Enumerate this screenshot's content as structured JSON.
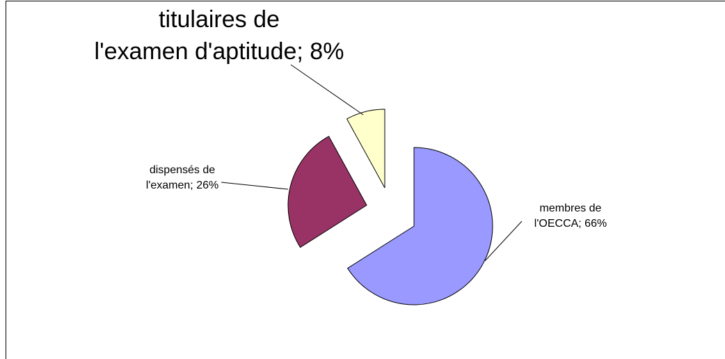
{
  "chart_data": {
    "type": "pie",
    "values": [
      66,
      26,
      8
    ],
    "value_labels": [
      "membres de l'OECCA; 66%",
      "dispensés de l'examen; 26%",
      "titulaires de l'examen d'aptitude; 8%"
    ],
    "colors": [
      "#9999ff",
      "#993366",
      "#ffffcc"
    ]
  }
}
